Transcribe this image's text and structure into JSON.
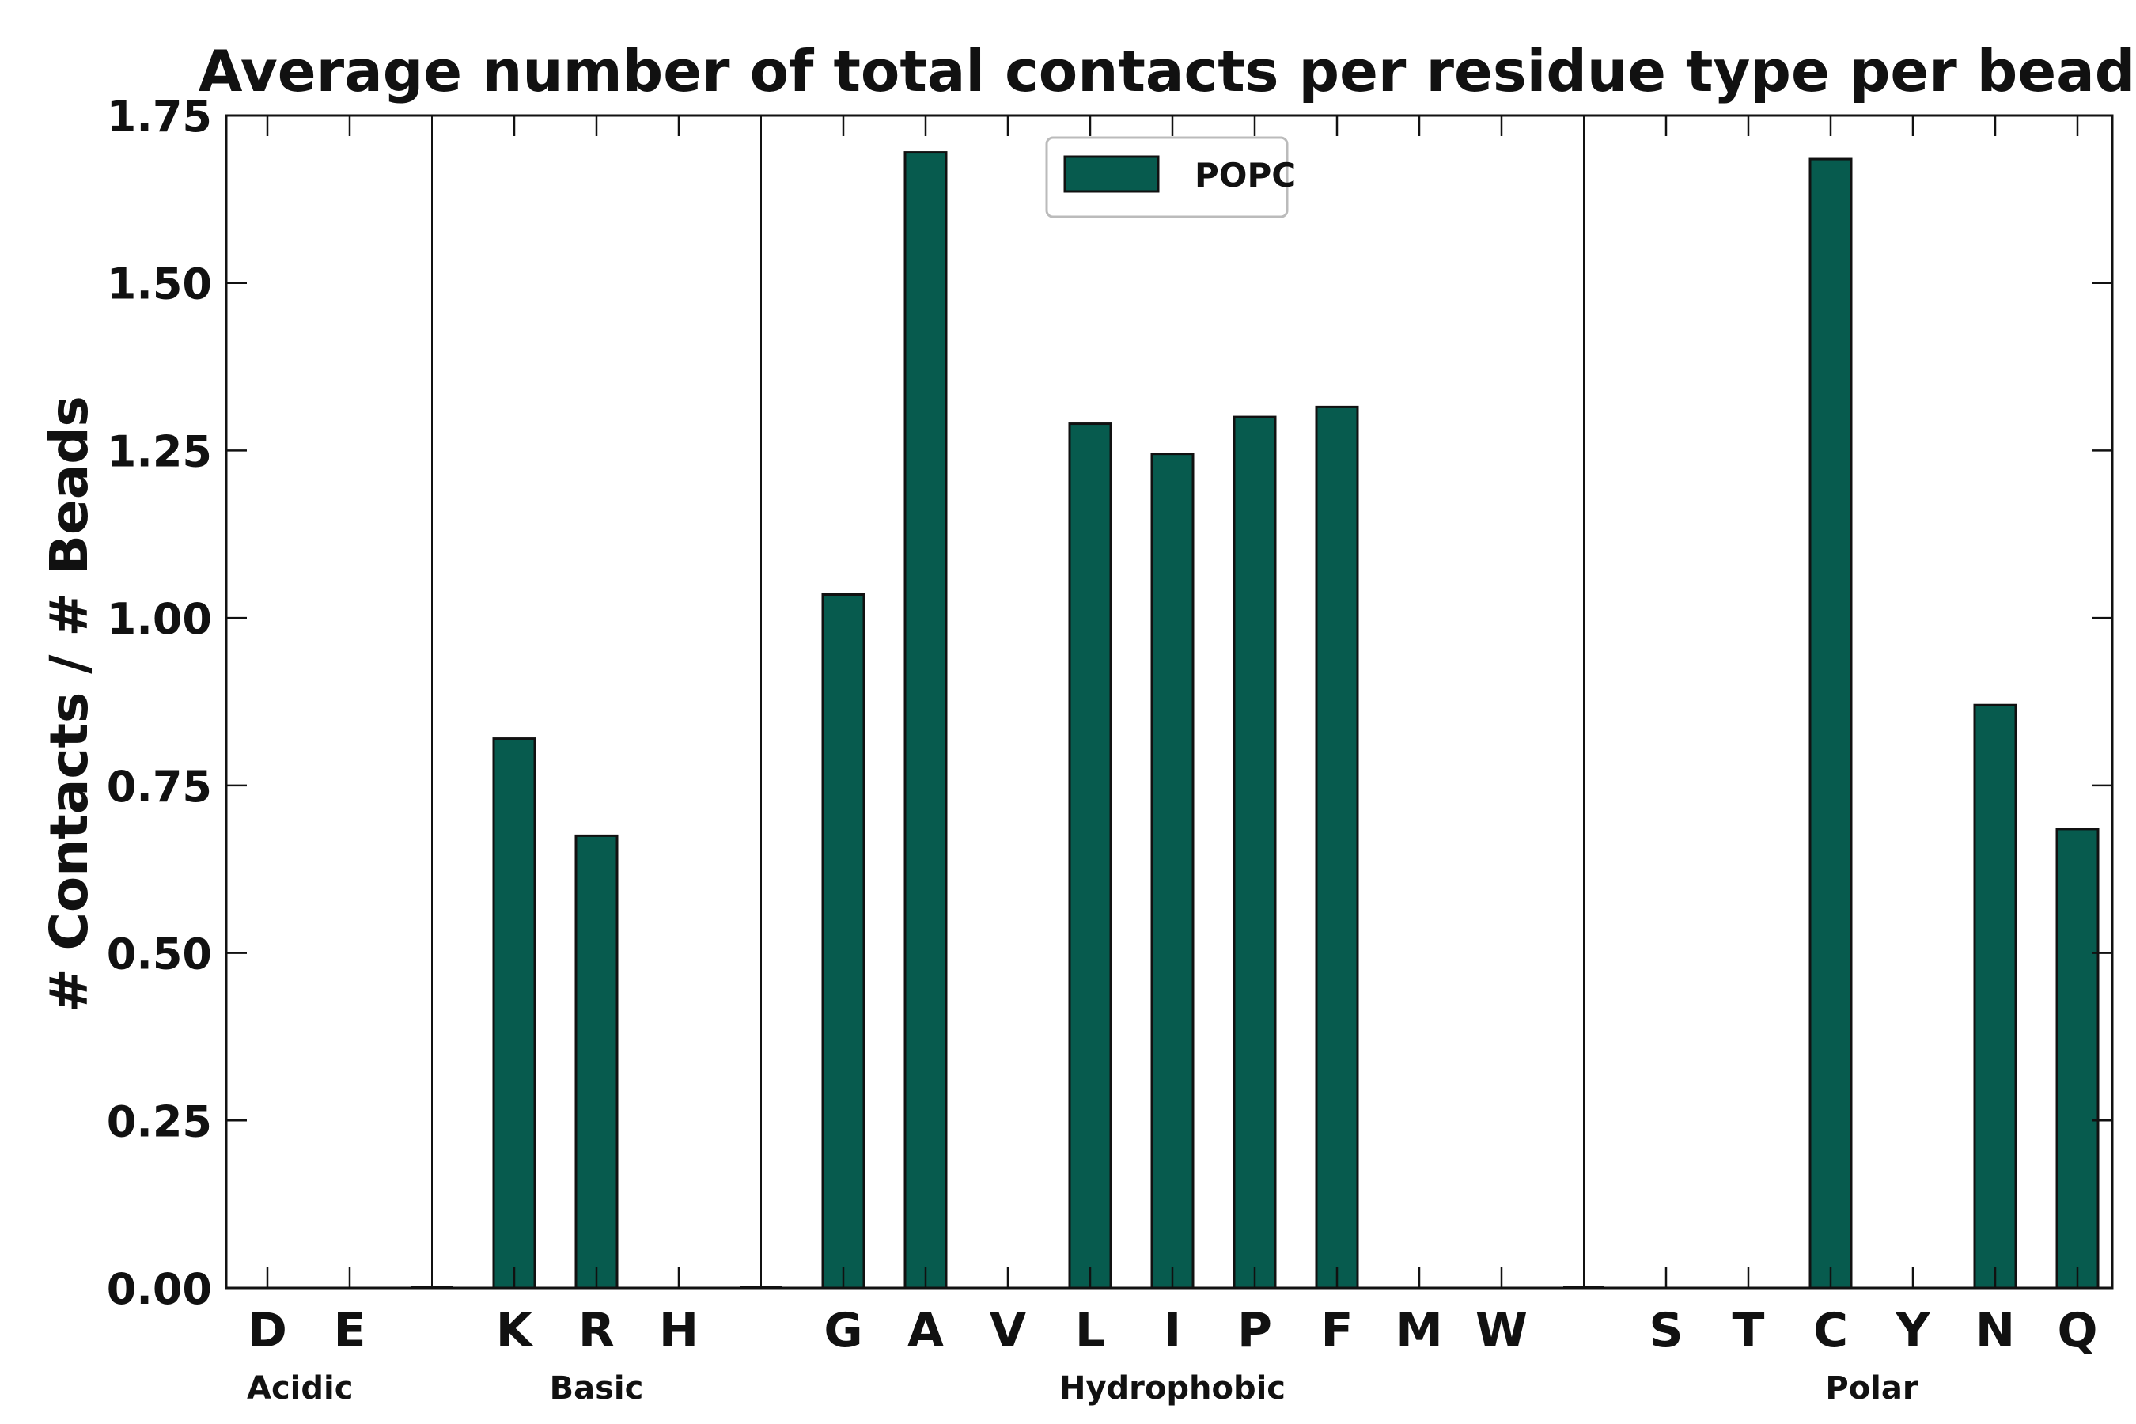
{
  "chart_data": {
    "type": "bar",
    "title": "Average number of total contacts per residue type per bead",
    "xlabel": "",
    "ylabel": "# Contacts / # Beads",
    "ylim": [
      0,
      1.75
    ],
    "yticks": [
      "0.00",
      "0.25",
      "0.50",
      "0.75",
      "1.00",
      "1.25",
      "1.50",
      "1.75"
    ],
    "grid": false,
    "legend": {
      "placement": "top-center",
      "entries": [
        "POPC"
      ]
    },
    "colors": {
      "bar": "#075b4e",
      "edge": "#111111",
      "axis": "#111111"
    },
    "categories": [
      "D",
      "E",
      "K",
      "R",
      "H",
      "G",
      "A",
      "V",
      "L",
      "I",
      "P",
      "F",
      "M",
      "W",
      "S",
      "T",
      "C",
      "Y",
      "N",
      "Q"
    ],
    "series": [
      {
        "name": "POPC",
        "values": [
          0,
          0,
          0.82,
          0.675,
          0,
          1.035,
          1.695,
          0,
          1.29,
          1.245,
          1.3,
          1.315,
          0,
          0,
          0,
          0,
          1.685,
          0,
          0.87,
          0.685
        ]
      }
    ],
    "groups": [
      {
        "label": "Acidic",
        "members": [
          "D",
          "E"
        ]
      },
      {
        "label": "Basic",
        "members": [
          "K",
          "R",
          "H"
        ]
      },
      {
        "label": "Hydrophobic",
        "members": [
          "G",
          "A",
          "V",
          "L",
          "I",
          "P",
          "F",
          "M",
          "W"
        ]
      },
      {
        "label": "Polar",
        "members": [
          "S",
          "T",
          "C",
          "Y",
          "N",
          "Q"
        ]
      }
    ]
  }
}
